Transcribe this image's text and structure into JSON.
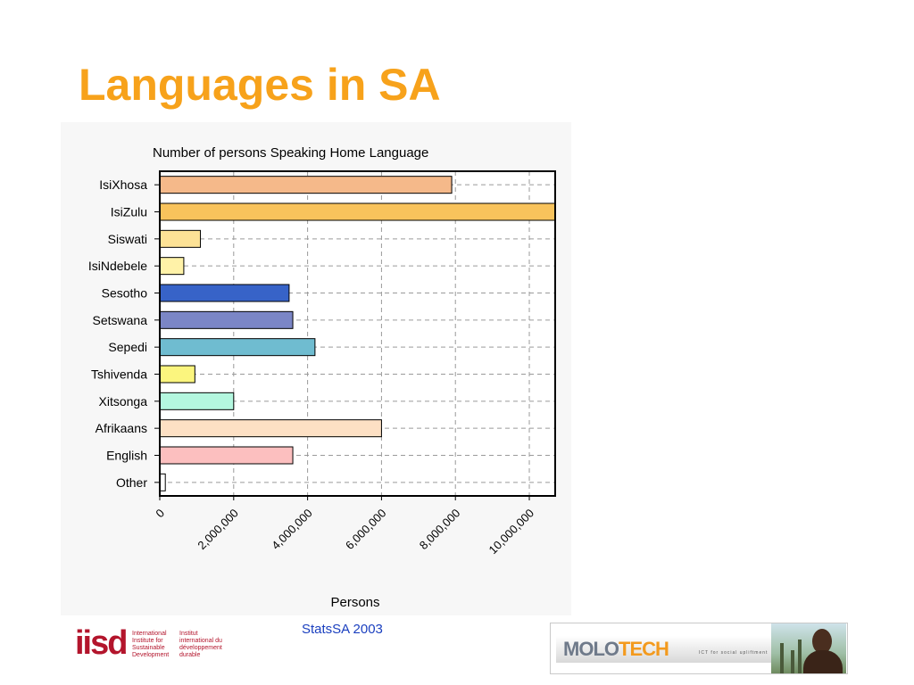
{
  "slide": {
    "title": "Languages in SA",
    "source": "StatsSA 2003"
  },
  "logos": {
    "iisd": {
      "word": "iisd",
      "col1": [
        "International",
        "Institute for",
        "Sustainable",
        "Development"
      ],
      "col2": [
        "Institut",
        "international du",
        "développement",
        "durable"
      ],
      "color": "#b3152c"
    },
    "molotech": {
      "word_a": "MOLO",
      "word_b": "TECH",
      "tagline": "ICT for social upliftment"
    }
  },
  "chart_data": {
    "type": "bar",
    "orientation": "horizontal",
    "title": "Number of persons Speaking Home Language",
    "xlabel": "Persons",
    "ylabel": "",
    "categories": [
      "IsiXhosa",
      "IsiZulu",
      "Siswati",
      "IsiNdebele",
      "Sesotho",
      "Setswana",
      "Sepedi",
      "Tshivenda",
      "Xitsonga",
      "Afrikaans",
      "English",
      "Other"
    ],
    "values": [
      7900000,
      10700000,
      1100000,
      650000,
      3500000,
      3600000,
      4200000,
      950000,
      2000000,
      6000000,
      3600000,
      150000
    ],
    "colors": [
      "#f5b98a",
      "#f8c35c",
      "#fde296",
      "#fff2a8",
      "#3763c8",
      "#7b86c6",
      "#6fbcd0",
      "#fbf57e",
      "#b4f7df",
      "#fde0c4",
      "#fcbfbf",
      "#ffffff"
    ],
    "xlim": [
      0,
      10700000
    ],
    "xticks": [
      0,
      2000000,
      4000000,
      6000000,
      8000000,
      10000000
    ],
    "xtick_labels": [
      "0",
      "2,000,000",
      "4,000,000",
      "6,000,000",
      "8,000,000",
      "10,000,000"
    ],
    "grid": true,
    "legend": "none"
  }
}
